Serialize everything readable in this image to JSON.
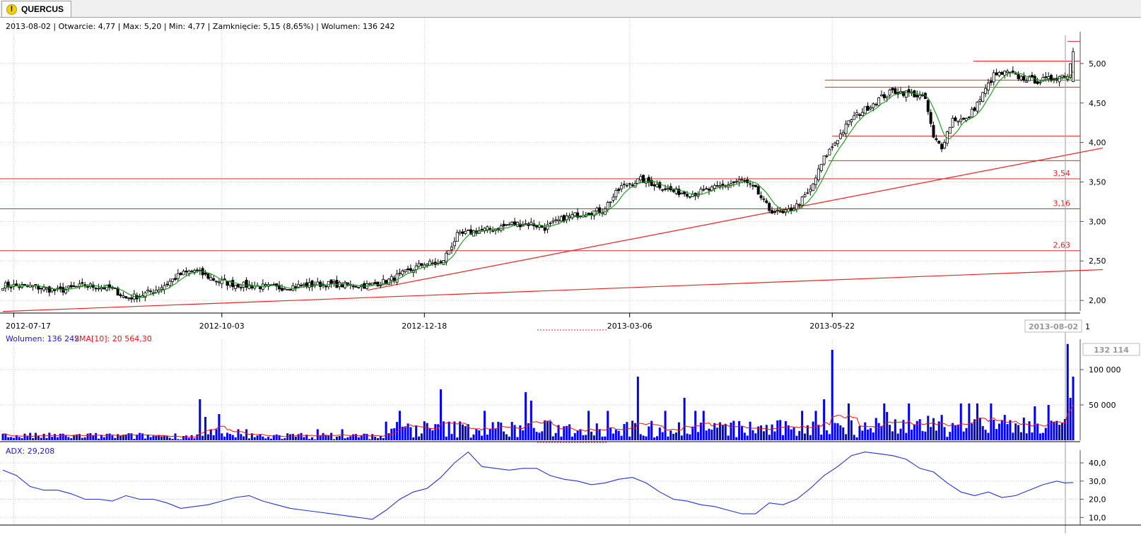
{
  "tab": {
    "title": "QUERCUS",
    "icon": "warning-icon"
  },
  "price_panel": {
    "info": "2013-08-02 | Otwarcie: 4,77 | Max: 5,20 | Min: 4,77 | Zamknięcie: 5,15 (8,65%)  | Wolumen: 136 242",
    "y_ticks": [
      "2,00",
      "2,50",
      "3,00",
      "3,50",
      "4,00",
      "4,50",
      "5,00"
    ],
    "level_labels": [
      "3,54",
      "3,16",
      "2,63"
    ],
    "x_ticks": [
      "2012-07-17",
      "2012-10-03",
      "2012-12-18",
      "2013-03-06",
      "2013-05-22"
    ],
    "cursor_date": "2013-08-02",
    "axis_cut_label": "1"
  },
  "volume_panel": {
    "legend_volume": "Wolumen: 136 242",
    "legend_sma": "SMA[10]: 20 564,30",
    "y_ticks": [
      "50 000",
      "100 000"
    ],
    "cursor_value": "132 114"
  },
  "adx_panel": {
    "legend": "ADX: 29,208",
    "y_ticks": [
      "10,0",
      "20,0",
      "30,0",
      "40,0"
    ]
  },
  "colors": {
    "candle": "#000000",
    "ma_line": "#119911",
    "level_line": "#ee2222",
    "volume_bar": "#0000ee",
    "sma_line": "#ee1111",
    "adx_line": "#2233dd",
    "grid": "#c8c8c8"
  },
  "chart_data": [
    {
      "type": "candlestick",
      "title": "",
      "x": [
        "2012-07-17",
        "2012-10-03",
        "2012-12-18",
        "2013-03-06",
        "2013-05-22",
        "2013-08-02"
      ],
      "ylim": [
        1.84,
        5.33
      ],
      "ohlc_last": {
        "date": "2013-08-02",
        "open": 4.77,
        "high": 5.2,
        "low": 4.77,
        "close": 5.15,
        "change_pct": 8.65,
        "volume": 136242
      },
      "close_path": [
        [
          0,
          2.19
        ],
        [
          10,
          2.18
        ],
        [
          20,
          2.12
        ],
        [
          30,
          2.19
        ],
        [
          40,
          2.15
        ],
        [
          45,
          2.03
        ],
        [
          50,
          2.06
        ],
        [
          57,
          2.15
        ],
        [
          65,
          2.33
        ],
        [
          70,
          2.38
        ],
        [
          78,
          2.25
        ],
        [
          85,
          2.2
        ],
        [
          93,
          2.18
        ],
        [
          100,
          2.16
        ],
        [
          110,
          2.19
        ],
        [
          118,
          2.21
        ],
        [
          126,
          2.19
        ],
        [
          133,
          2.19
        ],
        [
          140,
          2.24
        ],
        [
          147,
          2.35
        ],
        [
          154,
          2.47
        ],
        [
          160,
          2.46
        ],
        [
          166,
          2.82
        ],
        [
          173,
          2.88
        ],
        [
          180,
          2.91
        ],
        [
          186,
          2.97
        ],
        [
          193,
          2.97
        ],
        [
          198,
          2.92
        ],
        [
          205,
          3.04
        ],
        [
          212,
          3.11
        ],
        [
          219,
          3.14
        ],
        [
          226,
          3.44
        ],
        [
          233,
          3.53
        ],
        [
          240,
          3.45
        ],
        [
          245,
          3.38
        ],
        [
          252,
          3.35
        ],
        [
          258,
          3.4
        ],
        [
          265,
          3.47
        ],
        [
          270,
          3.52
        ],
        [
          275,
          3.4
        ],
        [
          280,
          3.15
        ],
        [
          285,
          3.09
        ],
        [
          290,
          3.2
        ],
        [
          295,
          3.39
        ],
        [
          300,
          3.8
        ],
        [
          305,
          4.05
        ],
        [
          310,
          4.3
        ],
        [
          315,
          4.42
        ],
        [
          320,
          4.55
        ],
        [
          325,
          4.65
        ],
        [
          332,
          4.62
        ],
        [
          337,
          4.55
        ],
        [
          340,
          4.05
        ],
        [
          343,
          3.95
        ],
        [
          347,
          4.3
        ],
        [
          352,
          4.28
        ],
        [
          357,
          4.55
        ],
        [
          362,
          4.85
        ],
        [
          367,
          4.88
        ],
        [
          372,
          4.82
        ],
        [
          378,
          4.78
        ],
        [
          383,
          4.8
        ],
        [
          387,
          4.85
        ],
        [
          389,
          4.85
        ],
        [
          391,
          5.15
        ]
      ],
      "series": [
        {
          "name": "",
          "type": "moving_average"
        }
      ],
      "levels": [
        3.54,
        3.16,
        2.63,
        3.77,
        4.08,
        4.7,
        4.79,
        5.03,
        5.28
      ]
    },
    {
      "type": "bar",
      "legend": [
        "Wolumen: 136 242",
        "SMA[10]: 20 564,30"
      ],
      "ylim": [
        0,
        140000
      ],
      "spikes": [
        [
          72,
          58000
        ],
        [
          74,
          33000
        ],
        [
          79,
          37000
        ],
        [
          160,
          72000
        ],
        [
          191,
          68000
        ],
        [
          193,
          56000
        ],
        [
          232,
          90000
        ],
        [
          249,
          60000
        ],
        [
          300,
          58000
        ],
        [
          303,
          128000
        ],
        [
          323,
          40000
        ],
        [
          377,
          48000
        ],
        [
          382,
          50000
        ],
        [
          388,
          30000
        ],
        [
          389,
          136242
        ],
        [
          390,
          60000
        ],
        [
          391,
          90000
        ]
      ],
      "sma_last": 20564.3
    },
    {
      "type": "line",
      "legend": "ADX: 29,208",
      "ylim": [
        7,
        47
      ],
      "points": [
        [
          0,
          36
        ],
        [
          5,
          33
        ],
        [
          10,
          27
        ],
        [
          15,
          25
        ],
        [
          20,
          25
        ],
        [
          25,
          23
        ],
        [
          30,
          20
        ],
        [
          35,
          20
        ],
        [
          40,
          19
        ],
        [
          45,
          22
        ],
        [
          50,
          20
        ],
        [
          55,
          20
        ],
        [
          60,
          18
        ],
        [
          65,
          15
        ],
        [
          70,
          16
        ],
        [
          75,
          17
        ],
        [
          80,
          19
        ],
        [
          85,
          21
        ],
        [
          90,
          22
        ],
        [
          95,
          19
        ],
        [
          100,
          17
        ],
        [
          105,
          15
        ],
        [
          110,
          14
        ],
        [
          115,
          13
        ],
        [
          120,
          12
        ],
        [
          125,
          11
        ],
        [
          130,
          10
        ],
        [
          135,
          9
        ],
        [
          140,
          14
        ],
        [
          145,
          20
        ],
        [
          150,
          24
        ],
        [
          155,
          26
        ],
        [
          160,
          32
        ],
        [
          165,
          40
        ],
        [
          170,
          46
        ],
        [
          175,
          38
        ],
        [
          180,
          37
        ],
        [
          185,
          36
        ],
        [
          190,
          37
        ],
        [
          195,
          37
        ],
        [
          200,
          33
        ],
        [
          205,
          31
        ],
        [
          210,
          30
        ],
        [
          215,
          28
        ],
        [
          220,
          29
        ],
        [
          225,
          31
        ],
        [
          230,
          32
        ],
        [
          235,
          29
        ],
        [
          240,
          24
        ],
        [
          245,
          20
        ],
        [
          250,
          19
        ],
        [
          255,
          17
        ],
        [
          260,
          16
        ],
        [
          265,
          14
        ],
        [
          270,
          12
        ],
        [
          275,
          12
        ],
        [
          280,
          18
        ],
        [
          285,
          17
        ],
        [
          290,
          20
        ],
        [
          295,
          26
        ],
        [
          300,
          33
        ],
        [
          305,
          38
        ],
        [
          310,
          44
        ],
        [
          315,
          46
        ],
        [
          320,
          45
        ],
        [
          325,
          44
        ],
        [
          330,
          42
        ],
        [
          335,
          37
        ],
        [
          340,
          35
        ],
        [
          345,
          29
        ],
        [
          350,
          24
        ],
        [
          355,
          22
        ],
        [
          360,
          24
        ],
        [
          365,
          21
        ],
        [
          370,
          22
        ],
        [
          375,
          25
        ],
        [
          380,
          28
        ],
        [
          385,
          30
        ],
        [
          388,
          29
        ],
        [
          391,
          29.208
        ]
      ]
    }
  ]
}
